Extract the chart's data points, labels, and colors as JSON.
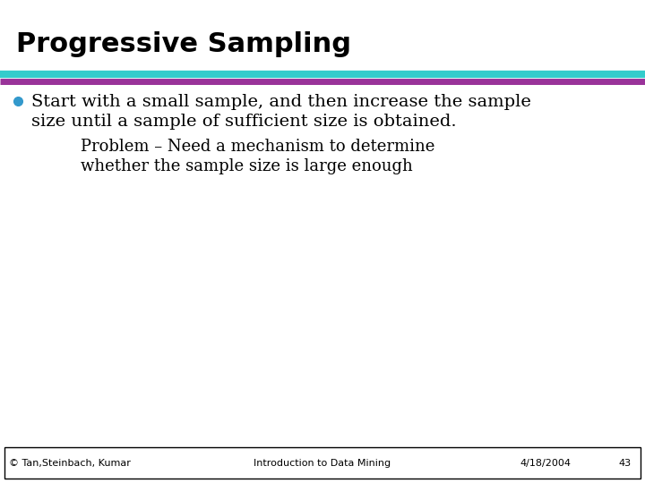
{
  "title": "Progressive Sampling",
  "title_fontsize": 22,
  "title_color": "#000000",
  "title_font": "sans-serif",
  "bullet_text_line1": "Start with a small sample, and then increase the sample",
  "bullet_text_line2": "size until a sample of sufficient size is obtained.",
  "sub_text_line1": "Problem – Need a mechanism to determine",
  "sub_text_line2": "whether the sample size is large enough",
  "bullet_color": "#3399cc",
  "body_font": "serif",
  "body_fontsize": 14,
  "sub_fontsize": 13,
  "footer_left": "© Tan,Steinbach, Kumar",
  "footer_center": "Introduction to Data Mining",
  "footer_right": "4/18/2004",
  "footer_page": "43",
  "footer_fontsize": 8,
  "bg_color": "#ffffff",
  "bar_color_top": "#33cccc",
  "bar_color_bottom": "#993399"
}
